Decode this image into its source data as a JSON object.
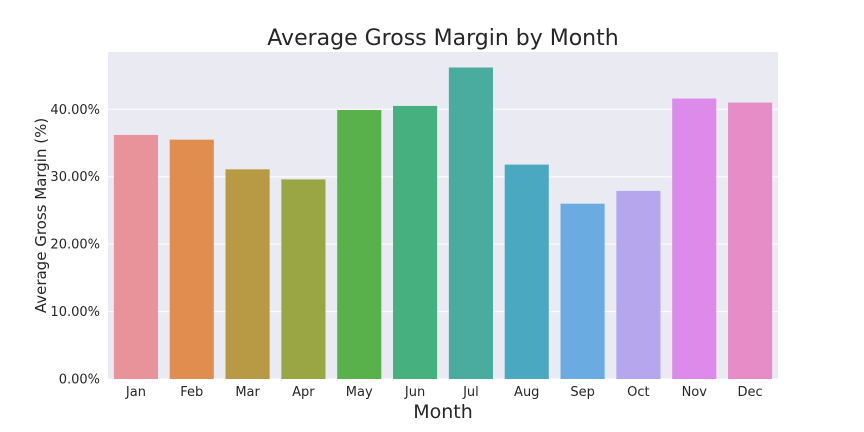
{
  "chart_data": {
    "type": "bar",
    "title": "Average Gross Margin by Month",
    "xlabel": "Month",
    "ylabel": "Average Gross Margin (%)",
    "categories": [
      "Jan",
      "Feb",
      "Mar",
      "Apr",
      "May",
      "Jun",
      "Jul",
      "Aug",
      "Sep",
      "Oct",
      "Nov",
      "Dec"
    ],
    "values": [
      0.362,
      0.355,
      0.311,
      0.296,
      0.399,
      0.405,
      0.462,
      0.318,
      0.26,
      0.279,
      0.416,
      0.41
    ],
    "ylim": [
      0,
      0.485
    ],
    "yticks": [
      0,
      0.1,
      0.2,
      0.3,
      0.4
    ],
    "ytick_labels": [
      "0.00%",
      "10.00%",
      "20.00%",
      "30.00%",
      "40.00%"
    ],
    "grid": true,
    "colors": [
      "#e8939a",
      "#e08e4f",
      "#b89a45",
      "#9aa544",
      "#58b14a",
      "#47b07f",
      "#4aab9f",
      "#4aa9c0",
      "#6aabe2",
      "#b5a6ee",
      "#dc8bea",
      "#e68dc7"
    ],
    "background_color": "#eaeaf2",
    "grid_color": "#ffffff"
  }
}
